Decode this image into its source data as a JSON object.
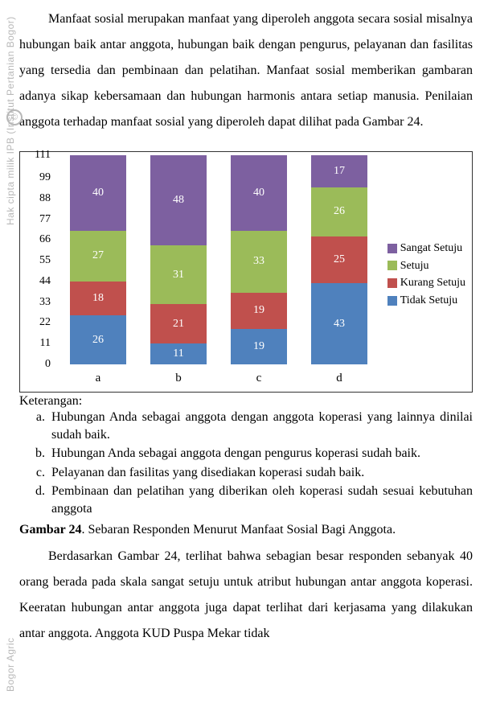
{
  "paragraph1": "Manfaat sosial merupakan manfaat yang diperoleh anggota secara sosial misalnya hubungan baik antar anggota, hubungan baik dengan pengurus, pelayanan dan fasilitas yang tersedia dan pembinaan dan pelatihan. Manfaat sosial memberikan gambaran adanya sikap kebersamaan dan hubungan harmonis antara setiap manusia. Penilaian anggota terhadap manfaat sosial yang diperoleh dapat dilihat pada Gambar 24.",
  "paragraph2": "Berdasarkan Gambar 24, terlihat bahwa sebagian besar responden sebanyak 40 orang berada pada skala sangat setuju untuk atribut hubungan antar anggota koperasi. Keeratan hubungan antar anggota juga dapat terlihat dari kerjasama yang dilakukan antar anggota. Anggota KUD Puspa Mekar tidak",
  "chart": {
    "type": "stacked-bar",
    "ylim": [
      0,
      111
    ],
    "ytick_step": 11,
    "yticks": [
      0,
      11,
      22,
      33,
      44,
      55,
      66,
      77,
      88,
      99,
      111
    ],
    "categories": [
      "a",
      "b",
      "c",
      "d"
    ],
    "series": [
      {
        "name": "Sangat Setuju",
        "color": "#7D60A0"
      },
      {
        "name": "Setuju",
        "color": "#9BBB59"
      },
      {
        "name": "Kurang Setuju",
        "color": "#C0504D"
      },
      {
        "name": "Tidak Setuju",
        "color": "#4F81BD"
      }
    ],
    "data": {
      "a": {
        "tidak": 26,
        "kurang": 18,
        "setuju": 27,
        "sangat": 40
      },
      "b": {
        "tidak": 11,
        "kurang": 21,
        "setuju": 31,
        "sangat": 48
      },
      "c": {
        "tidak": 19,
        "kurang": 19,
        "setuju": 33,
        "sangat": 40
      },
      "d": {
        "tidak": 43,
        "kurang": 25,
        "setuju": 26,
        "sangat": 17
      }
    },
    "background_color": "#ffffff",
    "border_color": "#333333",
    "label_fontcolor": "#ffffff",
    "label_fontsize": 14,
    "axis_fontsize": 14
  },
  "keterangan_title": "Keterangan:",
  "keterangan": [
    "Hubungan Anda sebagai anggota dengan anggota koperasi yang lainnya dinilai sudah baik.",
    "Hubungan Anda sebagai anggota dengan pengurus koperasi sudah baik.",
    "Pelayanan dan fasilitas yang disediakan koperasi sudah baik.",
    "Pembinaan dan pelatihan yang diberikan oleh koperasi sudah sesuai kebutuhan anggota"
  ],
  "caption_bold": "Gambar 24",
  "caption_rest": ". Sebaran Responden Menurut Manfaat Sosial Bagi Anggota.",
  "watermark1": "Hak cipta milik IPB (Institut Pertanian Bogor)",
  "watermark2": "Bogor Agric",
  "wm_circle": "©"
}
